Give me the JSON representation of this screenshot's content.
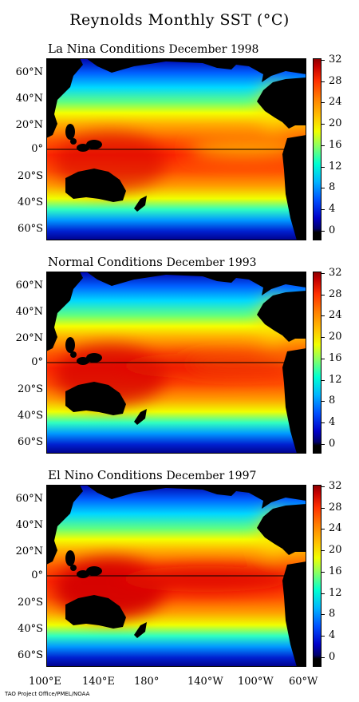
{
  "title": "Reynolds Monthly SST  (°C)",
  "panels": [
    {
      "condition": "La Nina Conditions",
      "date": "December 1998",
      "warm_pool_strength": 0.55,
      "cold_tongue_strength": 0.9
    },
    {
      "condition": "Normal Conditions",
      "date": "December 1993",
      "warm_pool_strength": 0.75,
      "cold_tongue_strength": 0.45
    },
    {
      "condition": "El Nino Conditions",
      "date": "December 1997",
      "warm_pool_strength": 0.95,
      "cold_tongue_strength": 0.0
    }
  ],
  "lat_labels": [
    "60°N",
    "40°N",
    "20°N",
    "0°",
    "20°S",
    "40°S",
    "60°S"
  ],
  "lon_labels": [
    "100°E",
    "140°E",
    "180°",
    "140°W",
    "100°W",
    "60°W"
  ],
  "colorbar": {
    "ticks": [
      "32",
      "28",
      "24",
      "20",
      "16",
      "12",
      "8",
      "4",
      "0"
    ],
    "range": [
      0,
      32
    ],
    "colors": [
      "#000000",
      "#00006a",
      "#0000c8",
      "#0050ff",
      "#00b4ff",
      "#00ffd2",
      "#8cff60",
      "#f0ff00",
      "#ffc400",
      "#ff8000",
      "#ff3000",
      "#c40000",
      "#8c0000"
    ]
  },
  "credit": "TAO Project Office/PMEL/NOAA"
}
